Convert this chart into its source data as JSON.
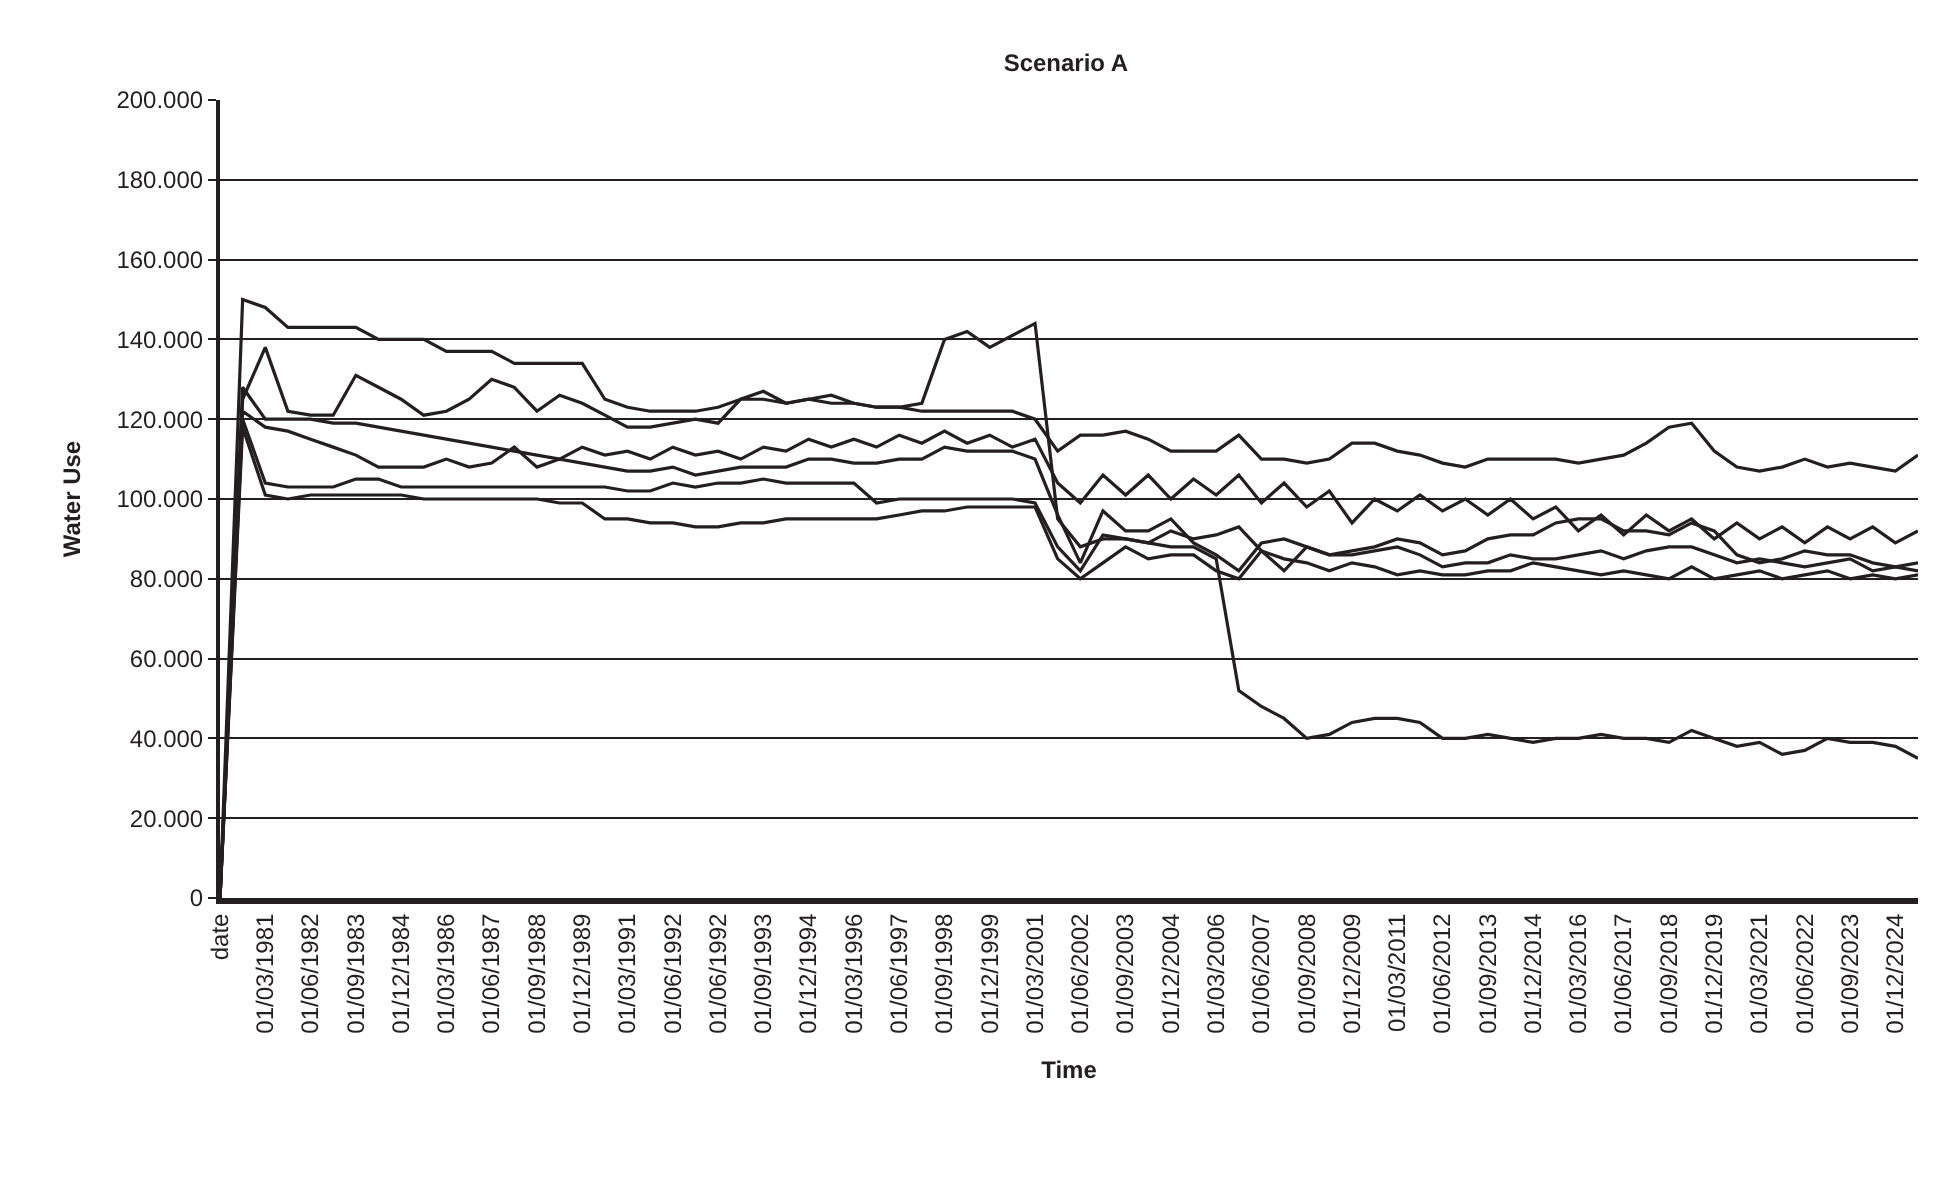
{
  "chart_data": {
    "type": "line",
    "title": "Scenario A",
    "xlabel": "Time",
    "ylabel": "Water Use",
    "categories": [
      "date",
      null,
      "01/03/1981",
      null,
      "01/06/1982",
      null,
      "01/09/1983",
      null,
      "01/12/1984",
      null,
      "01/03/1986",
      null,
      "01/06/1987",
      null,
      "01/09/1988",
      null,
      "01/12/1989",
      null,
      "01/03/1991",
      null,
      "01/06/1992",
      null,
      "01/06/1992",
      null,
      "01/09/1993",
      null,
      "01/12/1994",
      null,
      "01/03/1996",
      null,
      "01/06/1997",
      null,
      "01/09/1998",
      null,
      "01/12/1999",
      null,
      "01/03/2001",
      null,
      "01/06/2002",
      null,
      "01/09/2003",
      null,
      "01/12/2004",
      null,
      "01/03/2006",
      null,
      "01/06/2007",
      null,
      "01/09/2008",
      null,
      "01/12/2009",
      null,
      "01/03/2011",
      null,
      "01/06/2012",
      null,
      "01/09/2013",
      null,
      "01/12/2014",
      null,
      "01/03/2016",
      null,
      "01/06/2017",
      null,
      "01/09/2018",
      null,
      "01/12/2019",
      null,
      "01/03/2021",
      null,
      "01/06/2022",
      null,
      "01/09/2023",
      null,
      "01/12/2024",
      null
    ],
    "series": [
      {
        "color": "#231f20",
        "values": [
          0,
          150000,
          148000,
          143000,
          143000,
          143000,
          143000,
          140000,
          140000,
          140000,
          137000,
          137000,
          137000,
          134000,
          134000,
          134000,
          134000,
          125000,
          123000,
          122000,
          122000,
          122000,
          123000,
          125000,
          125000,
          124000,
          125000,
          124000,
          124000,
          123000,
          123000,
          124000,
          140000,
          142000,
          138000,
          141000,
          144000,
          95000,
          88000,
          90000,
          90000,
          89000,
          88000,
          88000,
          85000,
          52000,
          48000,
          45000,
          40000,
          41000,
          44000,
          45000,
          45000,
          44000,
          40000,
          40000,
          41000,
          40000,
          39000,
          40000,
          40000,
          41000,
          40000,
          40000,
          39000,
          42000,
          40000,
          38000,
          39000,
          36000,
          37000,
          40000,
          39000,
          39000,
          38000,
          35000
        ]
      },
      {
        "color": "#231f20",
        "values": [
          0,
          125000,
          138000,
          122000,
          121000,
          121000,
          131000,
          128000,
          125000,
          121000,
          122000,
          125000,
          130000,
          128000,
          122000,
          126000,
          124000,
          121000,
          118000,
          118000,
          119000,
          120000,
          119000,
          125000,
          127000,
          124000,
          125000,
          126000,
          124000,
          123000,
          123000,
          122000,
          122000,
          122000,
          122000,
          122000,
          120000,
          112000,
          116000,
          116000,
          117000,
          115000,
          112000,
          112000,
          112000,
          116000,
          110000,
          110000,
          109000,
          110000,
          114000,
          114000,
          112000,
          111000,
          109000,
          108000,
          110000,
          110000,
          110000,
          110000,
          109000,
          110000,
          111000,
          114000,
          118000,
          119000,
          112000,
          108000,
          107000,
          108000,
          110000,
          108000,
          109000,
          108000,
          107000,
          111000
        ]
      },
      {
        "color": "#231f20",
        "values": [
          0,
          128000,
          120000,
          120000,
          120000,
          119000,
          119000,
          118000,
          117000,
          116000,
          115000,
          114000,
          113000,
          112000,
          111000,
          110000,
          113000,
          111000,
          112000,
          110000,
          113000,
          111000,
          112000,
          110000,
          113000,
          112000,
          115000,
          113000,
          115000,
          113000,
          116000,
          114000,
          117000,
          114000,
          116000,
          113000,
          115000,
          104000,
          99000,
          106000,
          101000,
          106000,
          100000,
          105000,
          101000,
          106000,
          99000,
          104000,
          98000,
          102000,
          94000,
          100000,
          97000,
          101000,
          97000,
          100000,
          96000,
          100000,
          95000,
          98000,
          92000,
          96000,
          91000,
          96000,
          92000,
          95000,
          90000,
          94000,
          90000,
          93000,
          89000,
          93000,
          90000,
          93000,
          89000,
          92000
        ]
      },
      {
        "color": "#231f20",
        "values": [
          0,
          120000,
          104000,
          103000,
          103000,
          103000,
          105000,
          105000,
          103000,
          103000,
          103000,
          103000,
          103000,
          103000,
          103000,
          103000,
          103000,
          103000,
          102000,
          102000,
          104000,
          103000,
          104000,
          104000,
          105000,
          104000,
          104000,
          104000,
          104000,
          99000,
          100000,
          100000,
          100000,
          100000,
          100000,
          100000,
          99000,
          88000,
          82000,
          91000,
          90000,
          89000,
          92000,
          90000,
          91000,
          93000,
          87000,
          82000,
          88000,
          86000,
          86000,
          87000,
          88000,
          86000,
          83000,
          84000,
          84000,
          86000,
          85000,
          85000,
          86000,
          87000,
          85000,
          87000,
          88000,
          88000,
          86000,
          84000,
          85000,
          84000,
          83000,
          84000,
          85000,
          82000,
          83000,
          82000
        ]
      },
      {
        "color": "#231f20",
        "values": [
          0,
          118000,
          101000,
          100000,
          101000,
          101000,
          101000,
          101000,
          101000,
          100000,
          100000,
          100000,
          100000,
          100000,
          100000,
          99000,
          99000,
          95000,
          95000,
          94000,
          94000,
          93000,
          93000,
          94000,
          94000,
          95000,
          95000,
          95000,
          95000,
          95000,
          96000,
          97000,
          97000,
          98000,
          98000,
          98000,
          98000,
          85000,
          80000,
          84000,
          88000,
          85000,
          86000,
          86000,
          82000,
          80000,
          87000,
          85000,
          84000,
          82000,
          84000,
          83000,
          81000,
          82000,
          81000,
          81000,
          82000,
          82000,
          84000,
          83000,
          82000,
          81000,
          82000,
          81000,
          80000,
          83000,
          80000,
          81000,
          82000,
          80000,
          81000,
          82000,
          80000,
          81000,
          80000,
          81000
        ]
      },
      {
        "color": "#231f20",
        "values": [
          0,
          122000,
          118000,
          117000,
          115000,
          113000,
          111000,
          108000,
          108000,
          108000,
          110000,
          108000,
          109000,
          113000,
          108000,
          110000,
          109000,
          108000,
          107000,
          107000,
          108000,
          106000,
          107000,
          108000,
          108000,
          108000,
          110000,
          110000,
          109000,
          109000,
          110000,
          110000,
          113000,
          112000,
          112000,
          112000,
          110000,
          96000,
          84000,
          97000,
          92000,
          92000,
          95000,
          89000,
          86000,
          82000,
          89000,
          90000,
          88000,
          86000,
          87000,
          88000,
          90000,
          89000,
          86000,
          87000,
          90000,
          91000,
          91000,
          94000,
          95000,
          95000,
          92000,
          92000,
          91000,
          94000,
          92000,
          86000,
          84000,
          85000,
          87000,
          86000,
          86000,
          84000,
          83000,
          84000
        ]
      }
    ],
    "ylim": [
      0,
      200000
    ],
    "yticks": [
      0,
      {
        "value": 20000,
        "label": "20.000"
      },
      {
        "value": 40000,
        "label": "40.000"
      },
      {
        "value": 60000,
        "label": "60.000"
      },
      {
        "value": 80000,
        "label": "80.000"
      },
      {
        "value": 100000,
        "label": "100.000"
      },
      {
        "value": 120000,
        "label": "120.000"
      },
      {
        "value": 140000,
        "label": "140.000"
      },
      {
        "value": 160000,
        "label": "160.000"
      },
      {
        "value": 180000,
        "label": "180.000"
      },
      {
        "value": 200000,
        "label": "200.000"
      }
    ],
    "grid": "y",
    "marker": "none",
    "line_style": "solid"
  }
}
